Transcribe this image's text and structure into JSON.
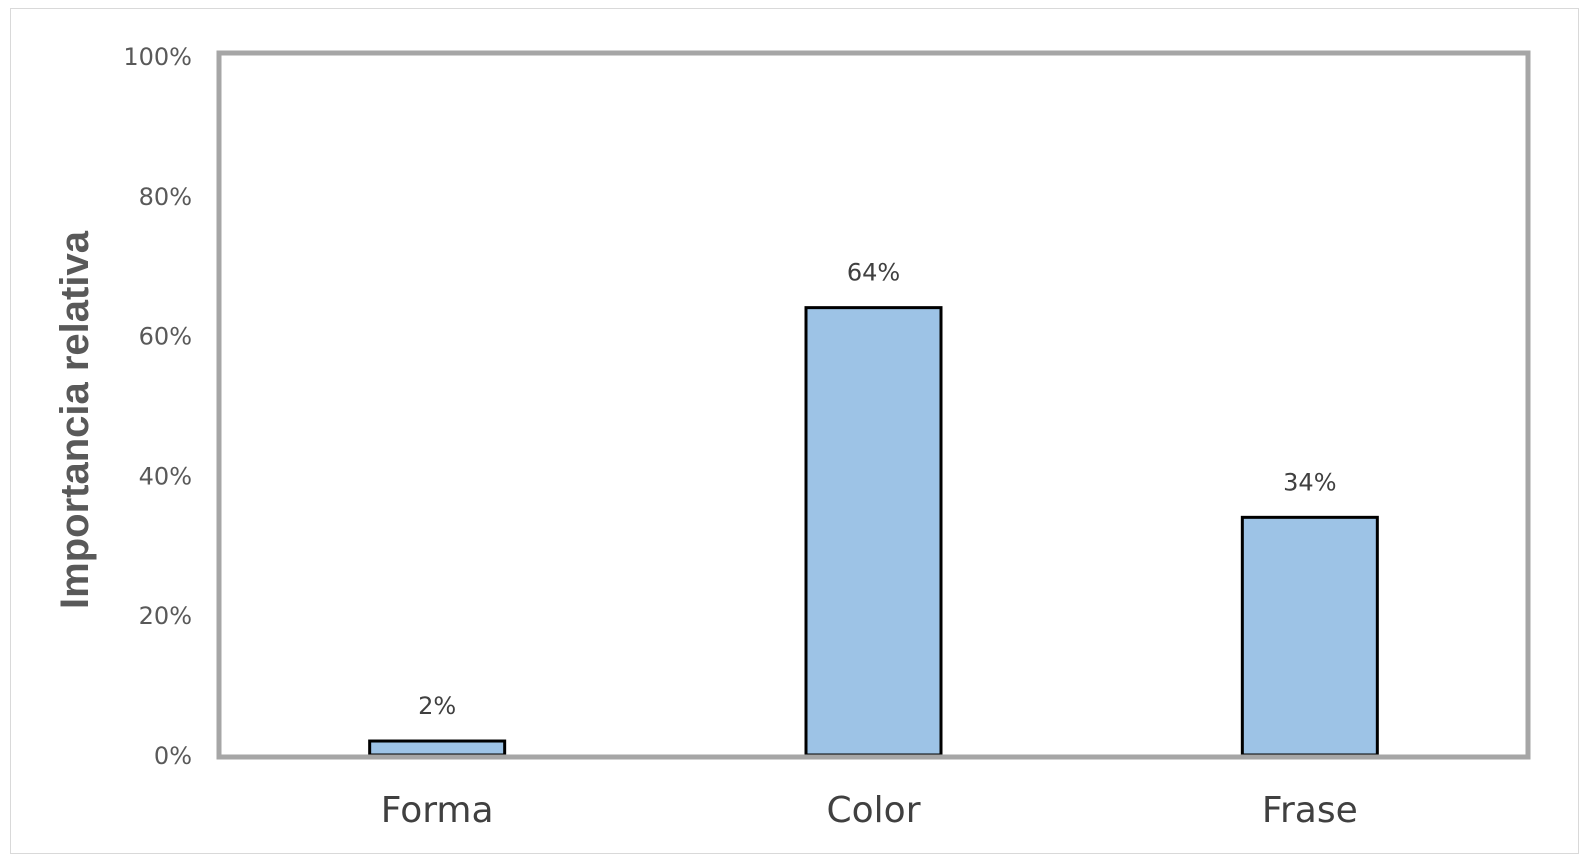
{
  "chart_data": {
    "type": "bar",
    "categories": [
      "Forma",
      "Color",
      "Frase"
    ],
    "values": [
      2,
      64,
      34
    ],
    "data_labels": [
      "2%",
      "64%",
      "34%"
    ],
    "ylabel": "Importancia relativa",
    "ylim": [
      0,
      100
    ],
    "yticks": [
      0,
      20,
      40,
      60,
      80,
      100
    ],
    "ytick_labels": [
      "0%",
      "20%",
      "40%",
      "60%",
      "80%",
      "100%"
    ],
    "grid": false,
    "legend": "none",
    "colors": {
      "bar_fill": "#9dc3e6",
      "bar_stroke": "#000000",
      "plot_border": "#a6a6a6"
    }
  }
}
